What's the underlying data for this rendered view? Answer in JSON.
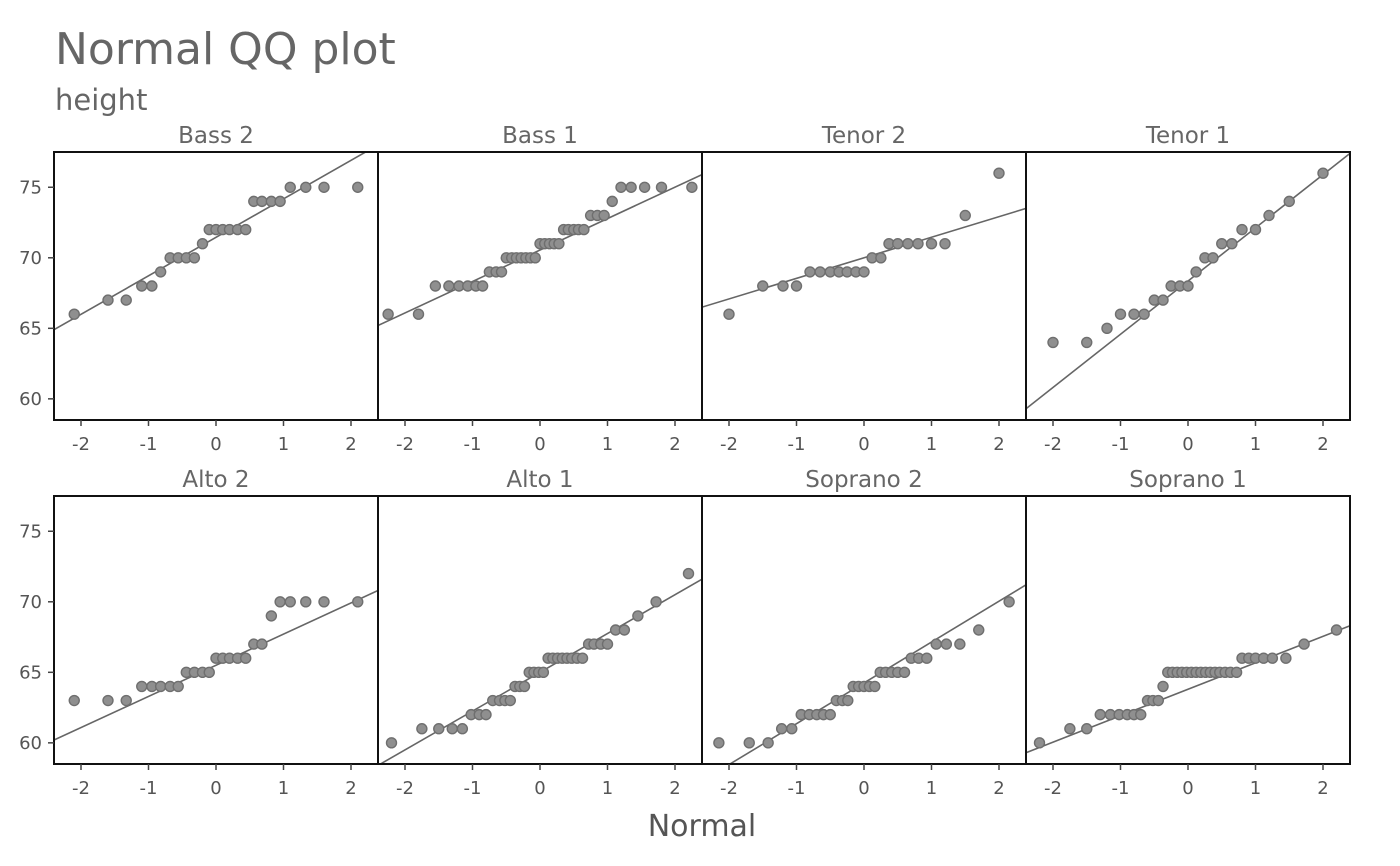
{
  "chart_data": {
    "type": "scatter",
    "title": "Normal QQ plot",
    "subtitle": "height",
    "xlabel": "Normal",
    "ylabel": "",
    "xlim": [
      -2.4,
      2.4
    ],
    "ylim": [
      58.5,
      77.5
    ],
    "xticks": [
      -2,
      -1,
      0,
      1,
      2
    ],
    "yticks": [
      60,
      65,
      70,
      75
    ],
    "point_color": "#8f8f8f",
    "line_color": "#666666",
    "panels": [
      {
        "name": "Bass 2",
        "line": [
          {
            "x": -2.4,
            "y": 64.9
          },
          {
            "x": 2.4,
            "y": 78.0
          }
        ],
        "points": [
          [
            -2.1,
            66
          ],
          [
            -1.6,
            67
          ],
          [
            -1.33,
            67
          ],
          [
            -1.1,
            68
          ],
          [
            -0.95,
            68
          ],
          [
            -0.82,
            69
          ],
          [
            -0.68,
            70
          ],
          [
            -0.56,
            70
          ],
          [
            -0.44,
            70
          ],
          [
            -0.32,
            70
          ],
          [
            -0.2,
            71
          ],
          [
            -0.1,
            72
          ],
          [
            0.0,
            72
          ],
          [
            0.1,
            72
          ],
          [
            0.2,
            72
          ],
          [
            0.32,
            72
          ],
          [
            0.44,
            72
          ],
          [
            0.56,
            74
          ],
          [
            0.68,
            74
          ],
          [
            0.82,
            74
          ],
          [
            0.95,
            74
          ],
          [
            1.1,
            75
          ],
          [
            1.33,
            75
          ],
          [
            1.6,
            75
          ],
          [
            2.1,
            75
          ]
        ]
      },
      {
        "name": "Bass 1",
        "line": [
          {
            "x": -2.4,
            "y": 65.2
          },
          {
            "x": 2.4,
            "y": 75.9
          }
        ],
        "points": [
          [
            -2.25,
            66
          ],
          [
            -1.8,
            66
          ],
          [
            -1.55,
            68
          ],
          [
            -1.35,
            68
          ],
          [
            -1.2,
            68
          ],
          [
            -1.07,
            68
          ],
          [
            -0.95,
            68
          ],
          [
            -0.85,
            68
          ],
          [
            -0.75,
            69
          ],
          [
            -0.65,
            69
          ],
          [
            -0.57,
            69
          ],
          [
            -0.5,
            70
          ],
          [
            -0.42,
            70
          ],
          [
            -0.35,
            70
          ],
          [
            -0.28,
            70
          ],
          [
            -0.21,
            70
          ],
          [
            -0.14,
            70
          ],
          [
            -0.07,
            70
          ],
          [
            0.0,
            71
          ],
          [
            0.07,
            71
          ],
          [
            0.14,
            71
          ],
          [
            0.21,
            71
          ],
          [
            0.28,
            71
          ],
          [
            0.35,
            72
          ],
          [
            0.42,
            72
          ],
          [
            0.5,
            72
          ],
          [
            0.57,
            72
          ],
          [
            0.65,
            72
          ],
          [
            0.75,
            73
          ],
          [
            0.85,
            73
          ],
          [
            0.95,
            73
          ],
          [
            1.07,
            74
          ],
          [
            1.2,
            75
          ],
          [
            1.35,
            75
          ],
          [
            1.55,
            75
          ],
          [
            1.8,
            75
          ],
          [
            2.25,
            75
          ]
        ]
      },
      {
        "name": "Tenor 2",
        "line": [
          {
            "x": -2.4,
            "y": 66.5
          },
          {
            "x": 2.4,
            "y": 73.5
          }
        ],
        "points": [
          [
            -2.0,
            66
          ],
          [
            -1.5,
            68
          ],
          [
            -1.2,
            68
          ],
          [
            -1.0,
            68
          ],
          [
            -0.8,
            69
          ],
          [
            -0.65,
            69
          ],
          [
            -0.5,
            69
          ],
          [
            -0.37,
            69
          ],
          [
            -0.25,
            69
          ],
          [
            -0.12,
            69
          ],
          [
            0.0,
            69
          ],
          [
            0.12,
            70
          ],
          [
            0.25,
            70
          ],
          [
            0.37,
            71
          ],
          [
            0.5,
            71
          ],
          [
            0.65,
            71
          ],
          [
            0.8,
            71
          ],
          [
            1.0,
            71
          ],
          [
            1.2,
            71
          ],
          [
            1.5,
            73
          ],
          [
            2.0,
            76
          ]
        ]
      },
      {
        "name": "Tenor 1",
        "line": [
          {
            "x": -2.4,
            "y": 59.3
          },
          {
            "x": 2.4,
            "y": 77.4
          }
        ],
        "points": [
          [
            -2.0,
            64
          ],
          [
            -1.5,
            64
          ],
          [
            -1.2,
            65
          ],
          [
            -1.0,
            66
          ],
          [
            -0.8,
            66
          ],
          [
            -0.65,
            66
          ],
          [
            -0.5,
            67
          ],
          [
            -0.37,
            67
          ],
          [
            -0.25,
            68
          ],
          [
            -0.12,
            68
          ],
          [
            0.0,
            68
          ],
          [
            0.12,
            69
          ],
          [
            0.25,
            70
          ],
          [
            0.37,
            70
          ],
          [
            0.5,
            71
          ],
          [
            0.65,
            71
          ],
          [
            0.8,
            72
          ],
          [
            1.0,
            72
          ],
          [
            1.2,
            73
          ],
          [
            1.5,
            74
          ],
          [
            2.0,
            76
          ]
        ]
      },
      {
        "name": "Alto 2",
        "line": [
          {
            "x": -2.4,
            "y": 60.2
          },
          {
            "x": 2.4,
            "y": 70.8
          }
        ],
        "points": [
          [
            -2.1,
            63
          ],
          [
            -1.6,
            63
          ],
          [
            -1.33,
            63
          ],
          [
            -1.1,
            64
          ],
          [
            -0.95,
            64
          ],
          [
            -0.82,
            64
          ],
          [
            -0.68,
            64
          ],
          [
            -0.56,
            64
          ],
          [
            -0.44,
            65
          ],
          [
            -0.32,
            65
          ],
          [
            -0.2,
            65
          ],
          [
            -0.1,
            65
          ],
          [
            0.0,
            66
          ],
          [
            0.1,
            66
          ],
          [
            0.2,
            66
          ],
          [
            0.32,
            66
          ],
          [
            0.44,
            66
          ],
          [
            0.56,
            67
          ],
          [
            0.68,
            67
          ],
          [
            0.82,
            69
          ],
          [
            0.95,
            70
          ],
          [
            1.1,
            70
          ],
          [
            1.33,
            70
          ],
          [
            1.6,
            70
          ],
          [
            2.1,
            70
          ]
        ]
      },
      {
        "name": "Alto 1",
        "line": [
          {
            "x": -2.4,
            "y": 58.4
          },
          {
            "x": 2.4,
            "y": 71.6
          }
        ],
        "points": [
          [
            -2.2,
            60
          ],
          [
            -1.75,
            61
          ],
          [
            -1.5,
            61
          ],
          [
            -1.3,
            61
          ],
          [
            -1.15,
            61
          ],
          [
            -1.02,
            62
          ],
          [
            -0.9,
            62
          ],
          [
            -0.8,
            62
          ],
          [
            -0.7,
            63
          ],
          [
            -0.6,
            63
          ],
          [
            -0.52,
            63
          ],
          [
            -0.44,
            63
          ],
          [
            -0.37,
            64
          ],
          [
            -0.3,
            64
          ],
          [
            -0.23,
            64
          ],
          [
            -0.16,
            65
          ],
          [
            -0.09,
            65
          ],
          [
            -0.02,
            65
          ],
          [
            0.05,
            65
          ],
          [
            0.12,
            66
          ],
          [
            0.19,
            66
          ],
          [
            0.26,
            66
          ],
          [
            0.33,
            66
          ],
          [
            0.4,
            66
          ],
          [
            0.47,
            66
          ],
          [
            0.55,
            66
          ],
          [
            0.63,
            66
          ],
          [
            0.72,
            67
          ],
          [
            0.8,
            67
          ],
          [
            0.9,
            67
          ],
          [
            1.0,
            67
          ],
          [
            1.12,
            68
          ],
          [
            1.25,
            68
          ],
          [
            1.45,
            69
          ],
          [
            1.72,
            70
          ],
          [
            2.2,
            72
          ]
        ]
      },
      {
        "name": "Soprano 2",
        "line": [
          {
            "x": -2.4,
            "y": 57.3
          },
          {
            "x": 2.4,
            "y": 71.2
          }
        ],
        "points": [
          [
            -2.15,
            60
          ],
          [
            -1.7,
            60
          ],
          [
            -1.42,
            60
          ],
          [
            -1.22,
            61
          ],
          [
            -1.07,
            61
          ],
          [
            -0.93,
            62
          ],
          [
            -0.81,
            62
          ],
          [
            -0.7,
            62
          ],
          [
            -0.6,
            62
          ],
          [
            -0.5,
            62
          ],
          [
            -0.41,
            63
          ],
          [
            -0.32,
            63
          ],
          [
            -0.24,
            63
          ],
          [
            -0.16,
            64
          ],
          [
            -0.08,
            64
          ],
          [
            0.0,
            64
          ],
          [
            0.08,
            64
          ],
          [
            0.16,
            64
          ],
          [
            0.24,
            65
          ],
          [
            0.32,
            65
          ],
          [
            0.41,
            65
          ],
          [
            0.5,
            65
          ],
          [
            0.6,
            65
          ],
          [
            0.7,
            66
          ],
          [
            0.81,
            66
          ],
          [
            0.93,
            66
          ],
          [
            1.07,
            67
          ],
          [
            1.22,
            67
          ],
          [
            1.42,
            67
          ],
          [
            1.7,
            68
          ],
          [
            2.15,
            70
          ]
        ]
      },
      {
        "name": "Soprano 1",
        "line": [
          {
            "x": -2.4,
            "y": 59.3
          },
          {
            "x": 2.4,
            "y": 68.3
          }
        ],
        "points": [
          [
            -2.2,
            60
          ],
          [
            -1.75,
            61
          ],
          [
            -1.5,
            61
          ],
          [
            -1.3,
            62
          ],
          [
            -1.15,
            62
          ],
          [
            -1.02,
            62
          ],
          [
            -0.9,
            62
          ],
          [
            -0.8,
            62
          ],
          [
            -0.7,
            62
          ],
          [
            -0.6,
            63
          ],
          [
            -0.52,
            63
          ],
          [
            -0.44,
            63
          ],
          [
            -0.37,
            64
          ],
          [
            -0.3,
            65
          ],
          [
            -0.23,
            65
          ],
          [
            -0.16,
            65
          ],
          [
            -0.09,
            65
          ],
          [
            -0.02,
            65
          ],
          [
            0.05,
            65
          ],
          [
            0.12,
            65
          ],
          [
            0.19,
            65
          ],
          [
            0.26,
            65
          ],
          [
            0.33,
            65
          ],
          [
            0.4,
            65
          ],
          [
            0.47,
            65
          ],
          [
            0.55,
            65
          ],
          [
            0.63,
            65
          ],
          [
            0.72,
            65
          ],
          [
            0.8,
            66
          ],
          [
            0.9,
            66
          ],
          [
            1.0,
            66
          ],
          [
            1.12,
            66
          ],
          [
            1.25,
            66
          ],
          [
            1.45,
            66
          ],
          [
            1.72,
            67
          ],
          [
            2.2,
            68
          ]
        ]
      }
    ]
  }
}
